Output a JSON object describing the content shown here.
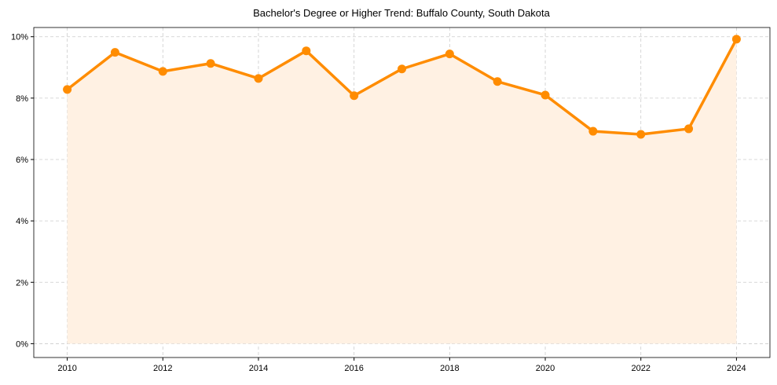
{
  "chart_data": {
    "type": "line",
    "title": "Bachelor's Degree or Higher Trend: Buffalo County, South Dakota",
    "xlabel": "",
    "ylabel": "",
    "x": [
      2010,
      2011,
      2012,
      2013,
      2014,
      2015,
      2016,
      2017,
      2018,
      2019,
      2020,
      2021,
      2022,
      2023,
      2024
    ],
    "series": [
      {
        "name": "Bachelor's Degree or Higher",
        "values": [
          8.28,
          9.49,
          8.87,
          9.13,
          8.64,
          9.54,
          8.08,
          8.95,
          9.44,
          8.54,
          8.1,
          6.92,
          6.82,
          7.0,
          9.92
        ]
      }
    ],
    "xlim": [
      2009.3,
      2024.7
    ],
    "ylim": [
      -0.45,
      10.3
    ],
    "xticks": [
      2010,
      2012,
      2014,
      2016,
      2018,
      2020,
      2022,
      2024
    ],
    "yticks": [
      0,
      2,
      4,
      6,
      8,
      10
    ],
    "ytick_labels": [
      "0%",
      "2%",
      "4%",
      "6%",
      "8%",
      "10%"
    ],
    "grid": true,
    "line_color": "#ff8c00",
    "fill_color": "#fff1e3"
  }
}
